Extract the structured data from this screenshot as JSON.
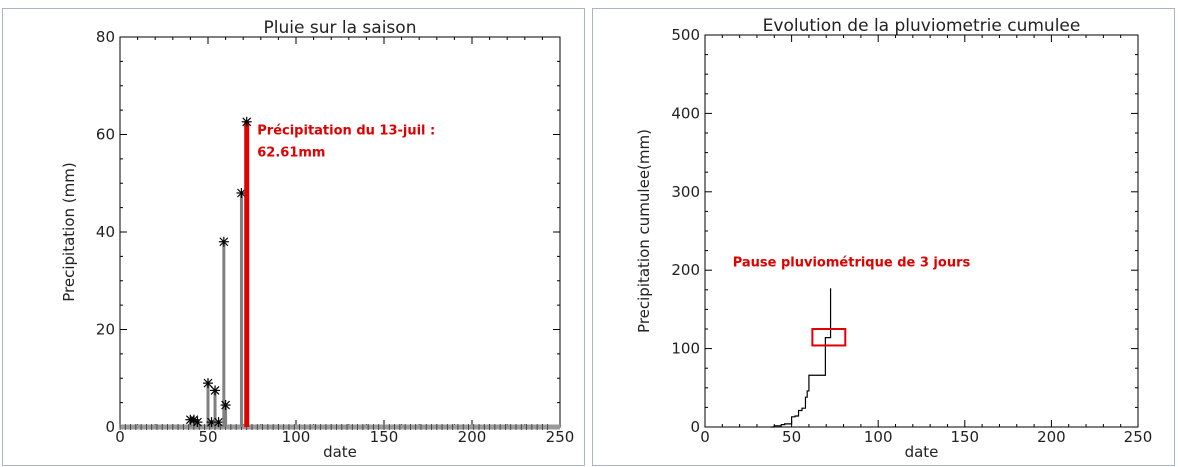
{
  "chart_data": [
    {
      "type": "bar",
      "title": "Pluie sur la saison",
      "xlabel": "date",
      "ylabel": "Precipitation (mm)",
      "xlim": [
        0,
        250
      ],
      "ylim": [
        0,
        80
      ],
      "xticks": [
        0,
        50,
        100,
        150,
        200,
        250
      ],
      "yticks": [
        0,
        20,
        40,
        60,
        80
      ],
      "x": [
        40,
        42,
        44,
        50,
        52,
        54,
        56,
        59,
        60,
        69,
        72
      ],
      "values": [
        1.5,
        1.5,
        1.0,
        9.0,
        1.0,
        7.5,
        1.0,
        38.0,
        4.5,
        48.0,
        62.61
      ],
      "highlight": {
        "x": 72,
        "value": 62.61,
        "color": "#e00000"
      },
      "annotations": [
        {
          "text": "Précipitation du 13-juil :",
          "x": 78,
          "y": 60
        },
        {
          "text": "62.61mm",
          "x": 78,
          "y": 55.5
        }
      ]
    },
    {
      "type": "line",
      "title": "Evolution de la pluviometrie cumulee",
      "xlabel": "date",
      "ylabel": "Precipitation cumulee(mm)",
      "xlim": [
        0,
        250
      ],
      "ylim": [
        0,
        500
      ],
      "xticks": [
        0,
        50,
        100,
        150,
        200,
        250
      ],
      "yticks": [
        0,
        100,
        200,
        300,
        400,
        500
      ],
      "x": [
        38,
        40,
        44,
        46,
        50,
        52,
        54,
        56,
        58,
        59,
        60,
        69,
        69.5,
        72,
        72.5
      ],
      "values": [
        0,
        1.5,
        3,
        4,
        13,
        14,
        21,
        24,
        38,
        46,
        66,
        66,
        114,
        114,
        177
      ],
      "annotations": [
        {
          "text": "Pause pluviométrique de 3 jours",
          "x": 16,
          "y": 205
        }
      ],
      "highlight_box": {
        "x0": 62,
        "x1": 81,
        "y0": 104,
        "y1": 125,
        "color": "#e00000"
      }
    }
  ]
}
